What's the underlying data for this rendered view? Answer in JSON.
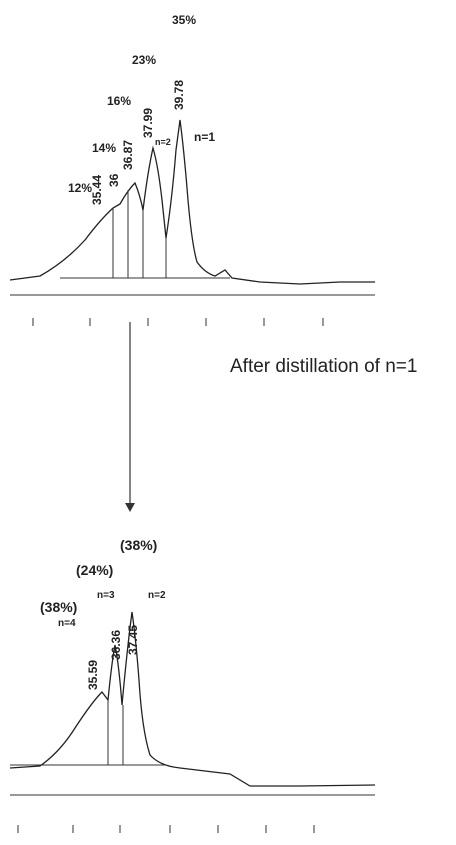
{
  "top_trace": {
    "peaks": [
      {
        "time": "35.44",
        "percent": "12%"
      },
      {
        "time": "36",
        "percent": "14%"
      },
      {
        "time": "36.87",
        "percent": "16%"
      },
      {
        "time": "37.99",
        "percent": "23%"
      },
      {
        "time": "39.78",
        "percent": "35%"
      }
    ],
    "labels": [
      "n=2",
      "n=1"
    ]
  },
  "arrow_text": "After distillation of n=1",
  "bottom_trace": {
    "peaks": [
      {
        "time": "35.59",
        "percent": "(38%)",
        "n": "n=4"
      },
      {
        "time": "36.36",
        "percent": "(24%)",
        "n": "n=3"
      },
      {
        "time": "37.45",
        "percent": "(38%)",
        "n": "n=2"
      }
    ]
  }
}
